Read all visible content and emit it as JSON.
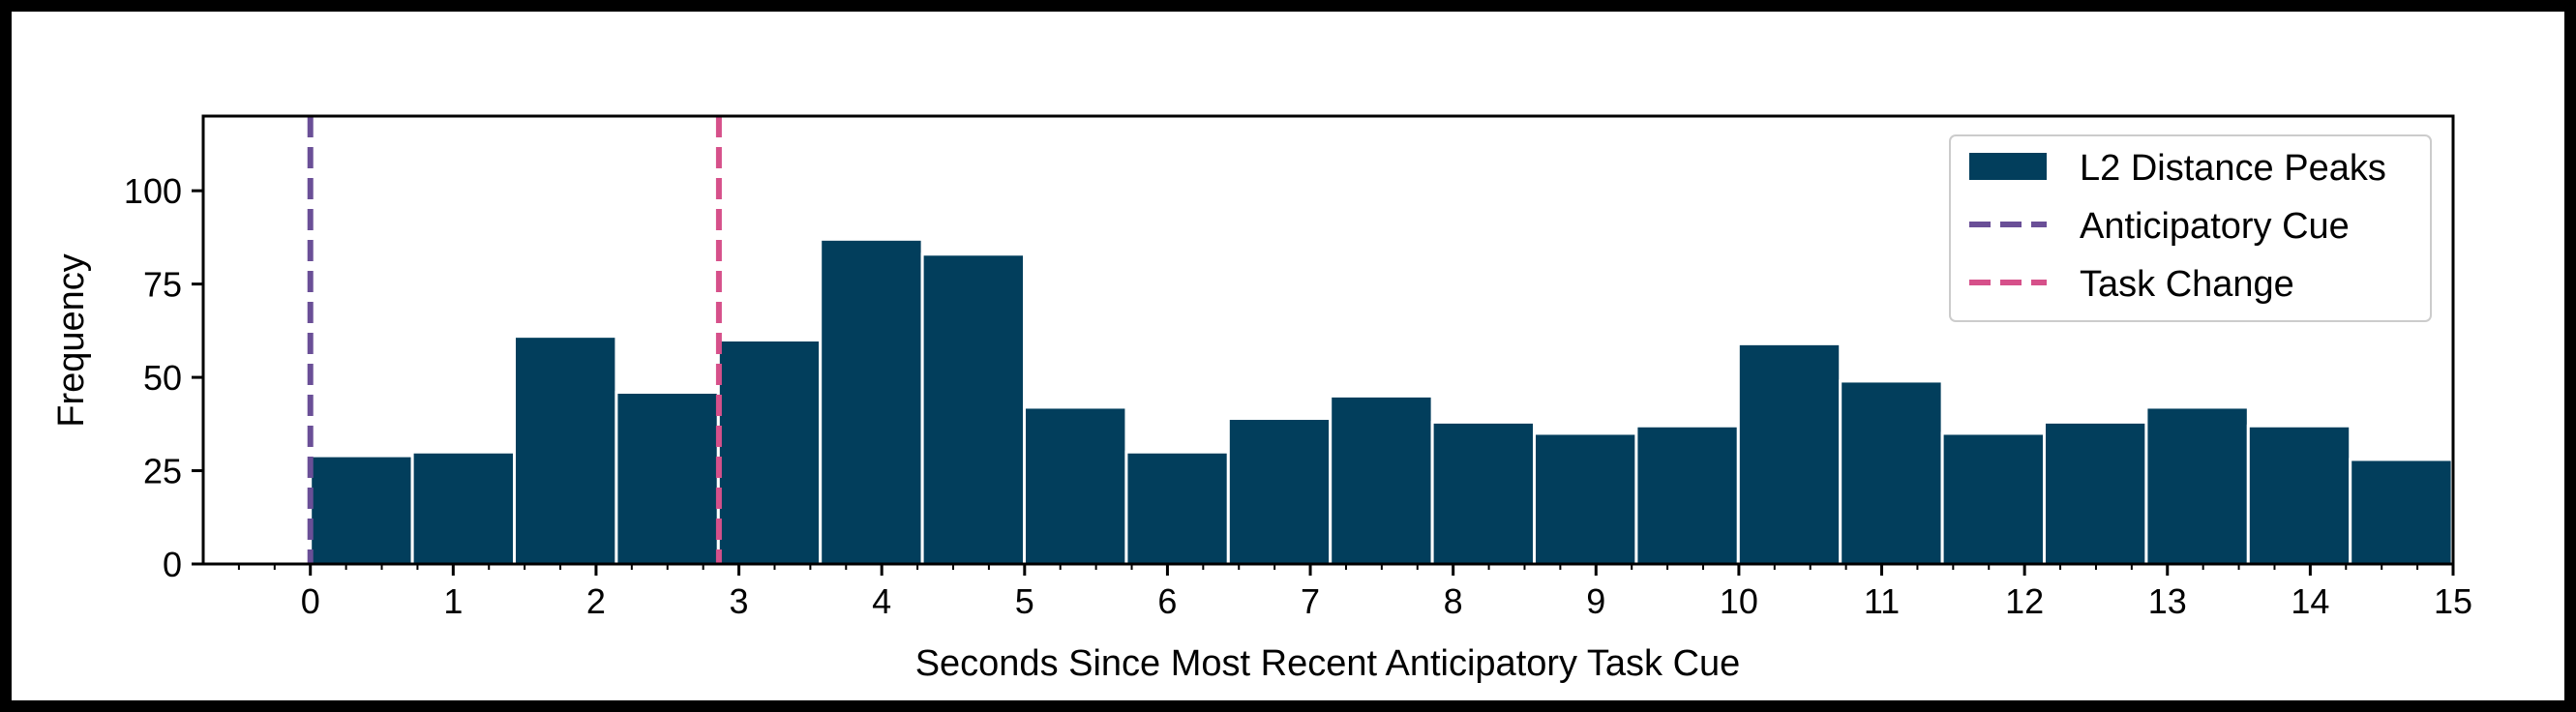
{
  "chart_data": {
    "type": "bar",
    "xlabel": "Seconds Since Most Recent Anticipatory Task Cue",
    "ylabel": "Frequency",
    "xlim": [
      -0.75,
      15
    ],
    "ylim": [
      0,
      120
    ],
    "x_ticks": [
      0,
      1,
      2,
      3,
      4,
      5,
      6,
      7,
      8,
      9,
      10,
      11,
      12,
      13,
      14,
      15
    ],
    "y_ticks": [
      0,
      25,
      50,
      75,
      100
    ],
    "bin_width": 0.714,
    "bin_start": 0,
    "series": [
      {
        "name": "L2 Distance Peaks",
        "values": [
          29,
          30,
          61,
          46,
          60,
          87,
          83,
          42,
          30,
          39,
          45,
          38,
          35,
          37,
          59,
          49,
          35,
          38,
          42,
          37,
          28
        ],
        "color": "#023e5c"
      }
    ],
    "vlines": [
      {
        "name": "Anticipatory Cue",
        "x": 0,
        "color": "#6a4f97",
        "style": "dashed"
      },
      {
        "name": "Task Change",
        "x": 2.86,
        "color": "#d6508a",
        "style": "dashed"
      }
    ],
    "legend_position": "top-right",
    "grid": false
  }
}
